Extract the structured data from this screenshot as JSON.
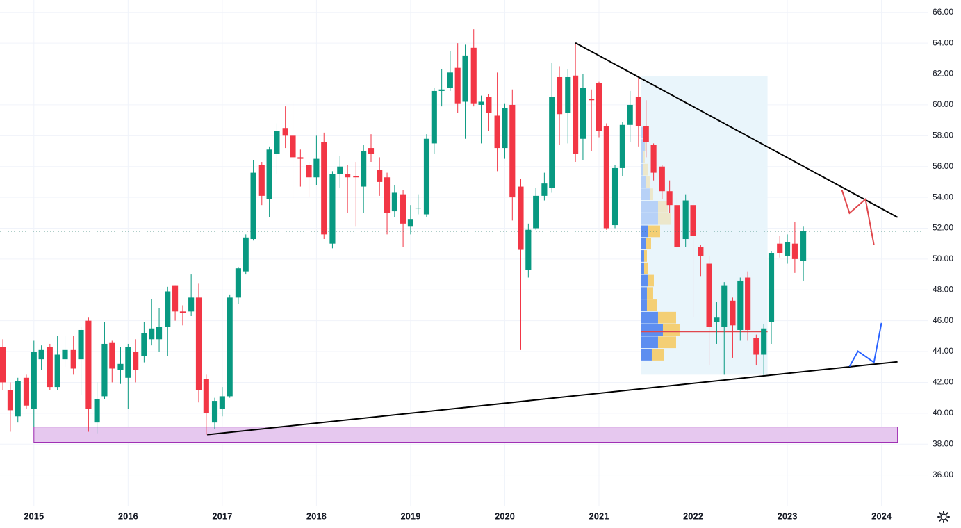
{
  "chart_data": {
    "type": "candlestick",
    "x": [
      2014.67,
      2014.75,
      2014.83,
      2014.92,
      2015.0,
      2015.08,
      2015.17,
      2015.25,
      2015.33,
      2015.42,
      2015.5,
      2015.58,
      2015.67,
      2015.75,
      2015.83,
      2015.92,
      2016.0,
      2016.08,
      2016.17,
      2016.25,
      2016.33,
      2016.42,
      2016.5,
      2016.58,
      2016.67,
      2016.75,
      2016.83,
      2016.92,
      2017.0,
      2017.08,
      2017.17,
      2017.25,
      2017.33,
      2017.42,
      2017.5,
      2017.58,
      2017.67,
      2017.75,
      2017.83,
      2017.92,
      2018.0,
      2018.08,
      2018.17,
      2018.25,
      2018.33,
      2018.42,
      2018.5,
      2018.58,
      2018.67,
      2018.75,
      2018.83,
      2018.92,
      2019.0,
      2019.08,
      2019.17,
      2019.25,
      2019.33,
      2019.42,
      2019.5,
      2019.58,
      2019.67,
      2019.75,
      2019.83,
      2019.92,
      2020.0,
      2020.08,
      2020.17,
      2020.25,
      2020.33,
      2020.42,
      2020.5,
      2020.58,
      2020.67,
      2020.75,
      2020.83,
      2020.92,
      2021.0,
      2021.08,
      2021.17,
      2021.25,
      2021.33,
      2021.42,
      2021.5,
      2021.58,
      2021.67,
      2021.75,
      2021.83,
      2021.92,
      2022.0,
      2022.08,
      2022.17,
      2022.25,
      2022.33,
      2022.42,
      2022.5,
      2022.58,
      2022.67,
      2022.75,
      2022.83,
      2022.92,
      2023.0,
      2023.08,
      2023.17
    ],
    "open": [
      44.3,
      41.5,
      39.8,
      42.3,
      40.3,
      43.5,
      44.3,
      41.7,
      43.5,
      44.1,
      43.5,
      46.0,
      39.4,
      41.1,
      44.6,
      42.8,
      42.3,
      44.0,
      43.7,
      44.8,
      44.8,
      45.6,
      48.3,
      46.6,
      46.6,
      47.5,
      42.2,
      39.4,
      40.3,
      41.1,
      47.5,
      49.2,
      51.3,
      56.1,
      53.9,
      56.8,
      58.5,
      58.0,
      56.6,
      56.1,
      55.3,
      57.6,
      51.0,
      55.5,
      55.5,
      55.4,
      54.7,
      57.2,
      55.8,
      55.3,
      53.1,
      54.2,
      52.1,
      53.28,
      52.9,
      57.5,
      60.9,
      61.1,
      62.4,
      60.2,
      63.7,
      60.0,
      60.5,
      59.3,
      57.2,
      60.0,
      54.7,
      49.3,
      52.0,
      54.1,
      54.6,
      61.8,
      59.5,
      61.9,
      57.8,
      60.4,
      61.4,
      58.6,
      52.2,
      55.9,
      58.7,
      60.5,
      58.6,
      57.4,
      56.0,
      54.4,
      53.5,
      51.3,
      53.5,
      50.8,
      49.7,
      45.9,
      45.6,
      47.3,
      45.4,
      48.8,
      44.9,
      43.8,
      45.9,
      51.0,
      50.2,
      51.0,
      49.9
    ],
    "high": [
      44.8,
      42.0,
      42.3,
      42.5,
      44.7,
      44.4,
      44.5,
      45.0,
      45.0,
      45.0,
      45.6,
      46.2,
      42.0,
      45.9,
      44.7,
      44.3,
      44.5,
      44.8,
      45.9,
      47.4,
      46.8,
      48.2,
      48.3,
      47.0,
      49.0,
      48.4,
      42.5,
      41.0,
      41.7,
      47.7,
      49.5,
      51.6,
      56.4,
      56.3,
      57.3,
      58.8,
      59.9,
      60.2,
      57.1,
      56.3,
      58.0,
      58.2,
      55.7,
      56.7,
      56.1,
      56.3,
      57.4,
      58.1,
      56.6,
      55.6,
      54.8,
      54.5,
      53.5,
      54.2,
      58.1,
      61.1,
      62.3,
      63.5,
      64.0,
      63.9,
      64.9,
      60.6,
      60.7,
      62.1,
      60.1,
      61.0,
      55.2,
      52.3,
      54.6,
      55.6,
      62.7,
      62.5,
      62.3,
      64.0,
      62.0,
      61.0,
      61.5,
      58.8,
      56.1,
      58.9,
      60.9,
      61.8,
      60.3,
      57.5,
      56.1,
      55.1,
      54.0,
      54.2,
      53.8,
      50.9,
      50.2,
      47.2,
      48.5,
      47.5,
      48.8,
      49.2,
      45.1,
      45.8,
      50.5,
      51.5,
      51.6,
      52.4,
      52.1
    ],
    "low": [
      41.5,
      38.8,
      39.4,
      40.3,
      39.1,
      42.8,
      41.5,
      41.5,
      43.0,
      42.5,
      41.2,
      38.8,
      38.7,
      40.9,
      42.0,
      41.9,
      40.3,
      42.0,
      43.3,
      44.4,
      44.0,
      43.7,
      46.0,
      45.7,
      46.3,
      40.7,
      38.6,
      39.0,
      39.8,
      41.0,
      47.1,
      49.0,
      51.2,
      53.5,
      52.7,
      55.5,
      57.2,
      53.9,
      54.7,
      54.0,
      54.8,
      51.3,
      50.7,
      54.6,
      53.0,
      52.1,
      53.0,
      56.3,
      54.1,
      51.6,
      52.7,
      50.8,
      51.6,
      52.9,
      52.7,
      56.8,
      59.9,
      60.9,
      59.5,
      57.8,
      59.9,
      57.5,
      58.3,
      55.7,
      56.5,
      52.5,
      44.1,
      48.8,
      51.9,
      53.8,
      54.3,
      57.4,
      57.5,
      56.3,
      56.4,
      57.0,
      57.9,
      51.9,
      52.0,
      55.4,
      57.6,
      57.3,
      56.6,
      55.1,
      53.9,
      53.0,
      50.7,
      50.8,
      46.2,
      48.9,
      43.1,
      44.5,
      42.5,
      43.6,
      44.7,
      44.7,
      43.1,
      42.4,
      44.5,
      50.1,
      49.7,
      49.1,
      48.6
    ],
    "close": [
      42.0,
      40.2,
      42.1,
      40.5,
      44.0,
      44.1,
      41.7,
      43.8,
      44.1,
      42.9,
      45.4,
      40.3,
      40.9,
      44.5,
      42.9,
      43.2,
      44.3,
      42.8,
      45.2,
      45.5,
      45.6,
      47.9,
      46.6,
      46.5,
      47.5,
      41.5,
      40.0,
      40.8,
      41.1,
      47.5,
      49.4,
      51.4,
      55.6,
      54.1,
      57.1,
      58.3,
      58.0,
      56.6,
      56.5,
      55.3,
      56.5,
      51.6,
      55.5,
      56.0,
      55.3,
      55.3,
      57.0,
      56.8,
      55.0,
      53.0,
      54.3,
      52.3,
      52.6,
      53.32,
      57.8,
      60.9,
      61.0,
      62.1,
      60.1,
      63.2,
      60.1,
      60.2,
      59.5,
      57.2,
      59.8,
      54.0,
      50.6,
      51.9,
      54.1,
      54.9,
      60.5,
      59.4,
      61.8,
      56.8,
      61.1,
      60.3,
      58.3,
      52.0,
      55.9,
      58.7,
      60.0,
      58.6,
      57.6,
      55.6,
      54.4,
      53.5,
      50.8,
      53.8,
      51.5,
      50.2,
      45.6,
      46.2,
      48.3,
      45.7,
      48.6,
      45.4,
      43.8,
      45.5,
      50.4,
      50.4,
      51.1,
      50.0,
      51.8
    ],
    "up_color": "#089981",
    "down_color": "#f23645",
    "xlim": [
      2014.64,
      2024.49
    ],
    "xticks": [
      2015,
      2016,
      2017,
      2018,
      2019,
      2020,
      2021,
      2022,
      2023,
      2024
    ],
    "ylim": [
      34.0,
      66.8
    ],
    "yticks": [
      {
        "value": 36,
        "label": "36.00"
      },
      {
        "value": 38,
        "label": "38.00"
      },
      {
        "value": 40,
        "label": "40.00"
      },
      {
        "value": 42,
        "label": "42.00"
      },
      {
        "value": 44,
        "label": "44.00"
      },
      {
        "value": 46,
        "label": "46.00"
      },
      {
        "value": 48,
        "label": "48.00"
      },
      {
        "value": 50,
        "label": "50.00"
      },
      {
        "value": 52,
        "label": "52.00"
      },
      {
        "value": 54,
        "label": "54.00"
      },
      {
        "value": 56,
        "label": "56.00"
      },
      {
        "value": 58,
        "label": "58.00"
      },
      {
        "value": 60,
        "label": "60.00"
      },
      {
        "value": 62,
        "label": "62.00"
      },
      {
        "value": 64,
        "label": "64.00"
      },
      {
        "value": 66,
        "label": "66.00"
      }
    ],
    "grid": true,
    "zone": {
      "x": [
        2015.0,
        2024.17
      ],
      "y": [
        38.12,
        39.11
      ],
      "color": "#e6c8ef"
    },
    "drawings": [
      {
        "x": [
          2020.75,
          2024.17
        ],
        "y": [
          64.02,
          52.71
        ],
        "color": "#000000"
      },
      {
        "x": [
          2016.84,
          2024.17
        ],
        "y": [
          38.61,
          43.34
        ],
        "color": "#000000"
      },
      {
        "x": [
          2023.58,
          2023.66,
          2023.83,
          2023.92
        ],
        "y": [
          54.47,
          52.98,
          53.88,
          50.91
        ],
        "color": "#e0474c"
      },
      {
        "x": [
          2023.66,
          2023.75,
          2023.92,
          2024.0
        ],
        "y": [
          43.03,
          44.02,
          43.3,
          45.86
        ],
        "color": "#2962ff"
      }
    ],
    "volume_profile": {
      "x": [
        2021.45,
        2022.79
      ],
      "y": [
        42.5,
        61.85
      ],
      "bins": [
        43.4,
        44.2,
        45.0,
        45.8,
        46.6,
        47.4,
        48.2,
        49.0,
        49.8,
        50.6,
        51.4,
        52.2,
        53.0,
        53.8,
        54.6,
        55.4,
        56.2,
        57.0,
        57.8,
        58.6
      ],
      "up": [
        15,
        24,
        31,
        24,
        8,
        8,
        9,
        4,
        4,
        7,
        10,
        24,
        24,
        12,
        6,
        3,
        3,
        5,
        2
      ],
      "down": [
        18,
        26,
        24,
        26,
        15,
        9,
        9,
        5,
        4,
        7,
        17,
        18,
        14,
        5,
        6,
        6,
        2,
        2,
        1
      ],
      "value_area": [
        43.4,
        52.2
      ],
      "poc": 45.3,
      "up_color": "#5d8ef0",
      "down_color": "#f4cf74",
      "area_color": "#e9f5fb",
      "poc_color": "#e0474c"
    }
  }
}
